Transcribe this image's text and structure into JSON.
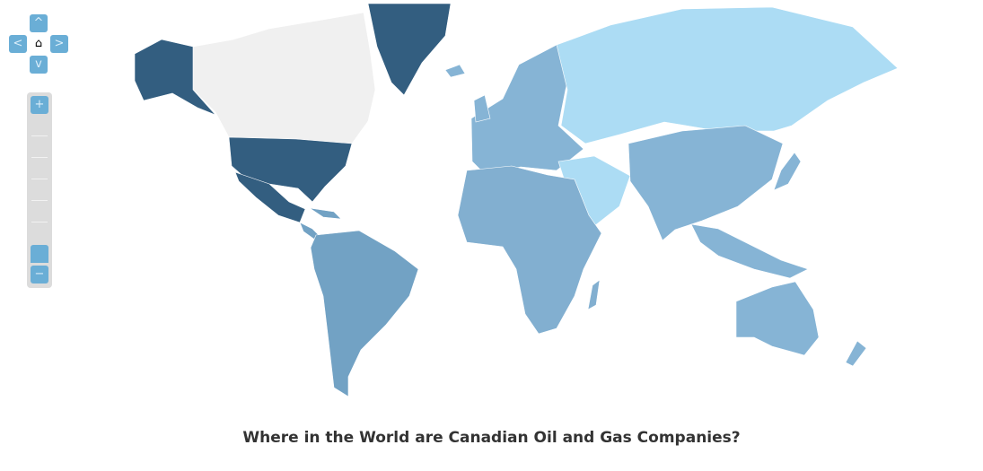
{
  "title": "Where in the World are Canadian Oil and Gas Companies?",
  "controls": {
    "pan_up": "^",
    "pan_left": "<",
    "pan_right": ">",
    "pan_down": "v",
    "home_icon": "⌂",
    "zoom_in": "+",
    "zoom_out": "−",
    "zoom_level": 0
  },
  "colors": {
    "none": "#f0f0f0",
    "dark": "#335e80",
    "medium_dark": "#72a2c4",
    "medium": "#86b4d5",
    "light": "#acdcf4",
    "control": "#6aaed6"
  }
}
